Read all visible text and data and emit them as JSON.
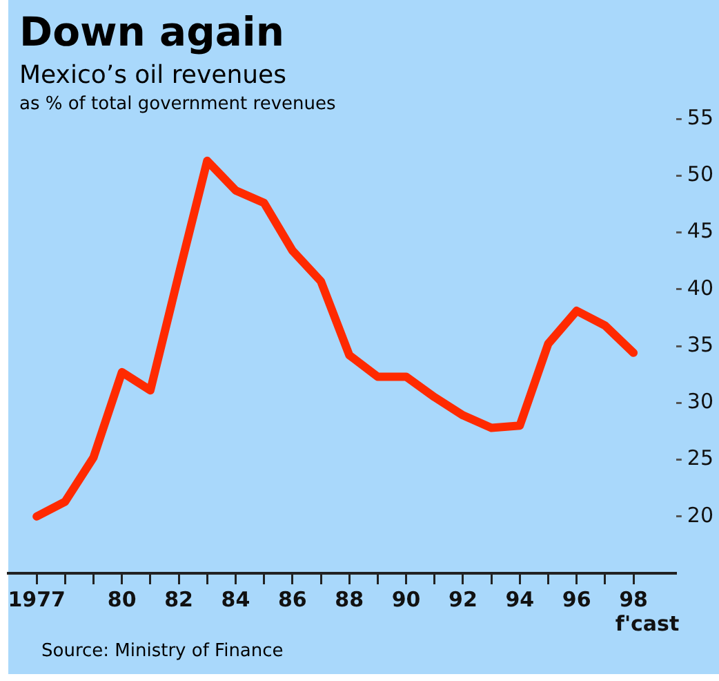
{
  "chart_data": {
    "type": "line",
    "title": "Down again",
    "subtitle": "Mexico’s oil revenues",
    "ylabel": "as % of total government revenues",
    "annotations": [
      "f'cast",
      "Source: Ministry of Finance"
    ],
    "x": [
      1977,
      1978,
      1979,
      1980,
      1981,
      1982,
      1983,
      1984,
      1985,
      1986,
      1987,
      1988,
      1989,
      1990,
      1991,
      1992,
      1993,
      1994,
      1995,
      1996,
      1997,
      1998
    ],
    "values": [
      20,
      21.3,
      25.2,
      32.7,
      31.1,
      41.3,
      51.3,
      48.7,
      47.6,
      43.4,
      40.7,
      34.2,
      32.3,
      32.3,
      30.5,
      28.9,
      27.8,
      28.0,
      35.2,
      38.1,
      36.8,
      34.4
    ],
    "color": "#ff2a00",
    "marker": "none",
    "line_style": "solid",
    "xlim": [
      1976,
      1999.5
    ],
    "xticks": [
      {
        "value": 1977,
        "label": "1977"
      },
      {
        "value": 1978,
        "label": null
      },
      {
        "value": 1979,
        "label": null
      },
      {
        "value": 1980,
        "label": "80"
      },
      {
        "value": 1981,
        "label": null
      },
      {
        "value": 1982,
        "label": "82"
      },
      {
        "value": 1983,
        "label": null
      },
      {
        "value": 1984,
        "label": "84"
      },
      {
        "value": 1985,
        "label": null
      },
      {
        "value": 1986,
        "label": "86"
      },
      {
        "value": 1987,
        "label": null
      },
      {
        "value": 1988,
        "label": "88"
      },
      {
        "value": 1989,
        "label": null
      },
      {
        "value": 1990,
        "label": "90"
      },
      {
        "value": 1991,
        "label": null
      },
      {
        "value": 1992,
        "label": "92"
      },
      {
        "value": 1993,
        "label": null
      },
      {
        "value": 1994,
        "label": "94"
      },
      {
        "value": 1995,
        "label": null
      },
      {
        "value": 1996,
        "label": "96"
      },
      {
        "value": 1997,
        "label": null
      },
      {
        "value": 1998,
        "label": "98"
      }
    ],
    "ylim": [
      15,
      55
    ],
    "yticks": [
      20,
      25,
      30,
      35,
      40,
      45,
      50,
      55
    ]
  }
}
